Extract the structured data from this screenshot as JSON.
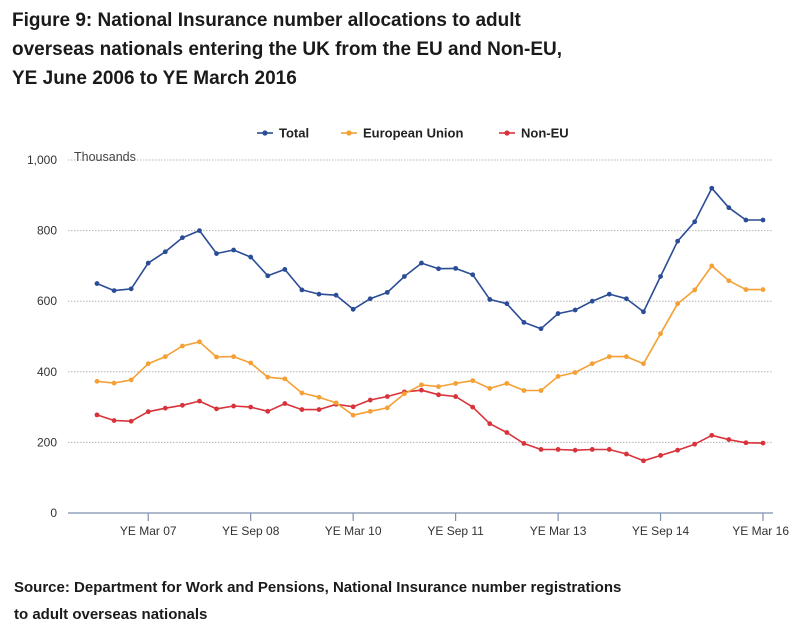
{
  "figure": {
    "title": "Figure 9: National Insurance number allocations to adult overseas nationals entering the UK from the EU and Non-EU, YE June 2006 to YE March 2016",
    "source": "Source: Department for Work and Pensions, National Insurance number registrations to adult overseas nationals"
  },
  "chart_data": {
    "type": "line",
    "ylabel": "Thousands",
    "xlabel": "",
    "ylim": [
      0,
      1000
    ],
    "yticks": [
      0,
      200,
      400,
      600,
      800,
      1000
    ],
    "ytick_labels": [
      "0",
      "200",
      "400",
      "600",
      "800",
      "1,000"
    ],
    "grid": true,
    "legend_position": "top-center",
    "categories": [
      "YE Jun 06",
      "YE Sep 06",
      "YE Dec 06",
      "YE Mar 07",
      "YE Jun 07",
      "YE Sep 07",
      "YE Dec 07",
      "YE Mar 08",
      "YE Jun 08",
      "YE Sep 08",
      "YE Dec 08",
      "YE Mar 09",
      "YE Jun 09",
      "YE Sep 09",
      "YE Dec 09",
      "YE Mar 10",
      "YE Jun 10",
      "YE Sep 10",
      "YE Dec 10",
      "YE Mar 11",
      "YE Jun 11",
      "YE Sep 11",
      "YE Dec 11",
      "YE Mar 12",
      "YE Jun 12",
      "YE Sep 12",
      "YE Dec 12",
      "YE Mar 13",
      "YE Jun 13",
      "YE Sep 13",
      "YE Dec 13",
      "YE Mar 14",
      "YE Jun 14",
      "YE Sep 14",
      "YE Dec 14",
      "YE Mar 15",
      "YE Jun 15",
      "YE Sep 15",
      "YE Dec 15",
      "YE Mar 16"
    ],
    "xtick_labels": [
      {
        "index": 3,
        "label": "YE Mar 07"
      },
      {
        "index": 9,
        "label": "YE Sep 08"
      },
      {
        "index": 15,
        "label": "YE Mar 10"
      },
      {
        "index": 21,
        "label": "YE Sep 11"
      },
      {
        "index": 27,
        "label": "YE Mar 13"
      },
      {
        "index": 33,
        "label": "YE Sep 14"
      },
      {
        "index": 39,
        "label": "YE Mar 16"
      }
    ],
    "series": [
      {
        "name": "Total",
        "color": "#2b4c96",
        "values": [
          650,
          630,
          635,
          708,
          740,
          780,
          800,
          735,
          745,
          725,
          672,
          690,
          632,
          620,
          617,
          577,
          607,
          625,
          670,
          708,
          692,
          693,
          675,
          605,
          593,
          540,
          522,
          565,
          575,
          600,
          620,
          607,
          570,
          670,
          770,
          825,
          920,
          865,
          830,
          830
        ]
      },
      {
        "name": "European Union",
        "color": "#f5a035",
        "values": [
          373,
          368,
          377,
          423,
          443,
          473,
          485,
          442,
          443,
          425,
          385,
          380,
          340,
          328,
          312,
          277,
          288,
          298,
          338,
          363,
          358,
          367,
          375,
          353,
          367,
          347,
          347,
          387,
          398,
          423,
          443,
          443,
          423,
          508,
          593,
          632,
          700,
          658,
          633,
          633
        ]
      },
      {
        "name": "Non-EU",
        "color": "#d8333a",
        "values": [
          278,
          262,
          260,
          287,
          297,
          305,
          317,
          295,
          303,
          300,
          288,
          310,
          293,
          293,
          308,
          301,
          320,
          330,
          343,
          348,
          335,
          330,
          300,
          253,
          228,
          197,
          180,
          180,
          178,
          180,
          180,
          167,
          148,
          163,
          178,
          195,
          220,
          208,
          199,
          198
        ]
      }
    ]
  }
}
